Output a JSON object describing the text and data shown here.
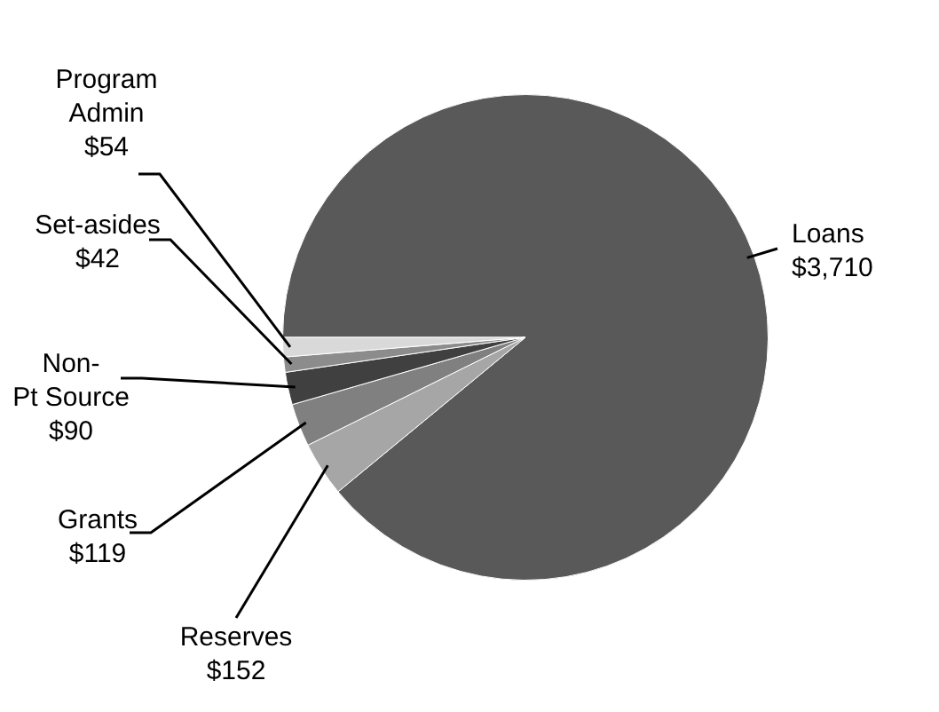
{
  "chart_data": {
    "type": "pie",
    "categories": [
      "Loans",
      "Reserves",
      "Grants",
      "Non-Pt Source",
      "Set-asides",
      "Program Admin"
    ],
    "values": [
      3710,
      152,
      119,
      90,
      42,
      54
    ],
    "value_labels": [
      "$3,710",
      "$152",
      "$119",
      "$90",
      "$42",
      "$54"
    ],
    "colors": [
      "#595959",
      "#a6a6a6",
      "#808080",
      "#404040",
      "#8c8c8c",
      "#d9d9d9"
    ],
    "legend": false
  }
}
